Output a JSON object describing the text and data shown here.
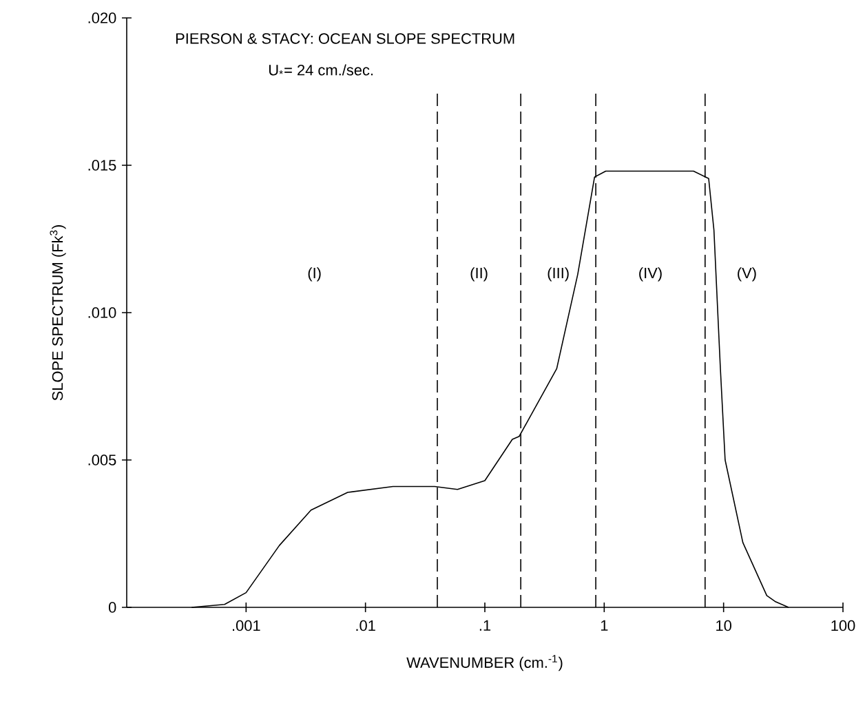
{
  "chart_data": {
    "type": "line",
    "title": "PIERSON & STACY:  OCEAN SLOPE SPECTRUM",
    "subtitle": "U$_{*}$= 24 cm./sec.",
    "xlabel": "WAVENUMBER (cm.$^{-1}$)",
    "ylabel": "SLOPE SPECTRUM (Fk$^{3}$)",
    "log": "x",
    "xlim": [
      0.0001,
      100
    ],
    "ylim": [
      0,
      0.02
    ],
    "xticks": [
      {
        "value": 0.001,
        "label": ".001"
      },
      {
        "value": 0.01,
        "label": ".01"
      },
      {
        "value": 0.1,
        "label": ".1"
      },
      1,
      10,
      100
    ],
    "yticks": [
      0,
      {
        "value": 0.005,
        "label": ".005"
      },
      {
        "value": 0.01,
        "label": ".010"
      },
      {
        "value": 0.015,
        "label": ".015"
      },
      {
        "value": 0.02,
        "label": ".020"
      }
    ],
    "grid": false,
    "marker": "none",
    "line_style": "solid",
    "series": [
      {
        "color": "#000000",
        "x": [
          0.00035,
          0.00066,
          0.001,
          0.0019,
          0.0035,
          0.0071,
          0.017,
          0.038,
          0.059,
          0.1,
          0.17,
          0.194,
          0.4,
          0.6,
          0.83,
          1.03,
          5.6,
          7.5,
          8.3,
          9.4,
          10.3,
          14.5,
          23,
          27,
          35
        ],
        "values": [
          0,
          0.0001,
          0.0005,
          0.0021,
          0.0033,
          0.0039,
          0.0041,
          0.0041,
          0.004,
          0.0043,
          0.0057,
          0.0058,
          0.0081,
          0.0113,
          0.0146,
          0.0148,
          0.0148,
          0.01455,
          0.0128,
          0.0081,
          0.005,
          0.0022,
          0.0004,
          0.0002,
          0
        ]
      }
    ],
    "ref_lines": [
      {
        "axis": "x",
        "value": 0.04,
        "line_style": "dashed"
      },
      {
        "axis": "x",
        "value": 0.2,
        "line_style": "dashed"
      },
      {
        "axis": "x",
        "value": 0.85,
        "line_style": "dashed"
      },
      {
        "axis": "x",
        "value": 7,
        "line_style": "dashed"
      }
    ],
    "annotations": [
      "(I)",
      "(II)",
      "(III)",
      "(IV)",
      "(V)"
    ]
  }
}
